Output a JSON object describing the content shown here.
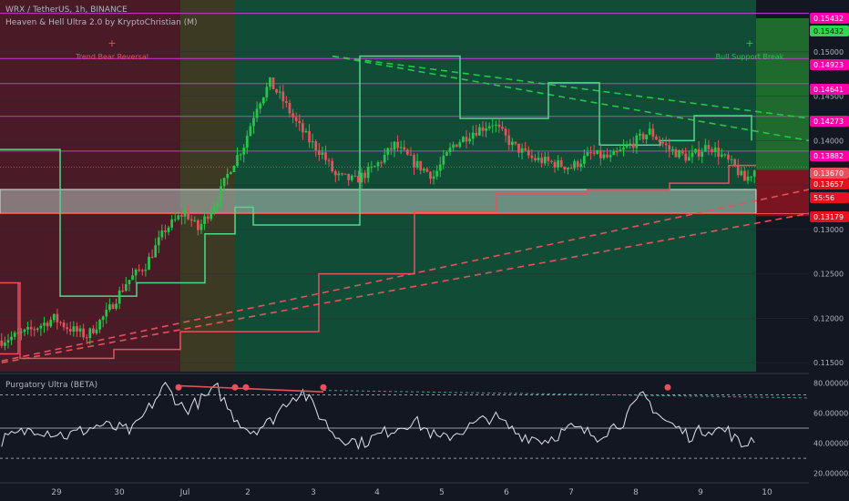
{
  "header": {
    "title": "WRX / TetherUS, 1h, BINANCE",
    "indicator": "Heaven & Hell Ultra 2.0 by KryptoChristian (M)",
    "oscillator": "Purgatory Ultra (BETA)"
  },
  "colors": {
    "background": "#131722",
    "bull": "#26c64b",
    "bear": "#e8505b",
    "magenta": "#c43bd6",
    "pink": "#ff00a8",
    "green_zone": "#114d36",
    "red_zone": "#4a1b27",
    "olive_zone": "#3d3a24",
    "text": "#b2b5be"
  },
  "chart_data": [
    {
      "type": "candlestick",
      "symbol": "WRX / TetherUS",
      "interval": "1h",
      "x_ticks": [
        "29",
        "30",
        "Jul",
        "2",
        "3",
        "4",
        "5",
        "6",
        "7",
        "8",
        "9",
        "10"
      ],
      "ylim": [
        0.114,
        0.155
      ],
      "y_ticks": [
        "0.11500",
        "0.12000",
        "0.12500",
        "0.13000",
        "0.13500",
        "0.14000",
        "0.14500",
        "0.15000"
      ],
      "price_labels": [
        {
          "value": "0.15432",
          "color": "#ff00a8"
        },
        {
          "value": "0.15432",
          "color": "#2fd64f"
        },
        {
          "value": "0.14923",
          "color": "#ff00a8"
        },
        {
          "value": "0.14641",
          "color": "#ff00a8"
        },
        {
          "value": "0.14273",
          "color": "#ff00a8"
        },
        {
          "value": "0.13882",
          "color": "#ff00a8"
        },
        {
          "value": "0.13670",
          "color": "#e8505b"
        },
        {
          "value": "0.13657",
          "color": "#e8101e"
        },
        {
          "value": "55:56",
          "color": "#e8101e"
        },
        {
          "value": "0.13179",
          "color": "#e8101e"
        }
      ],
      "horizontal_levels": [
        0.15432,
        0.14923,
        0.14641,
        0.14273,
        0.13882,
        0.13179
      ],
      "key_path": [
        [
          0,
          0.1175
        ],
        [
          8,
          0.1185
        ],
        [
          16,
          0.12
        ],
        [
          20,
          0.119
        ],
        [
          26,
          0.118
        ],
        [
          32,
          0.1205
        ],
        [
          38,
          0.124
        ],
        [
          44,
          0.126
        ],
        [
          50,
          0.13
        ],
        [
          56,
          0.132
        ],
        [
          60,
          0.13
        ],
        [
          66,
          0.1335
        ],
        [
          70,
          0.137
        ],
        [
          74,
          0.1395
        ],
        [
          78,
          0.144
        ],
        [
          82,
          0.1465
        ],
        [
          86,
          0.1445
        ],
        [
          90,
          0.142
        ],
        [
          94,
          0.14
        ],
        [
          98,
          0.1385
        ],
        [
          102,
          0.136
        ],
        [
          108,
          0.1355
        ],
        [
          114,
          0.137
        ],
        [
          120,
          0.1395
        ],
        [
          126,
          0.1375
        ],
        [
          132,
          0.136
        ],
        [
          138,
          0.1395
        ],
        [
          144,
          0.141
        ],
        [
          150,
          0.142
        ],
        [
          156,
          0.1395
        ],
        [
          162,
          0.138
        ],
        [
          168,
          0.1375
        ],
        [
          174,
          0.137
        ],
        [
          180,
          0.1385
        ],
        [
          186,
          0.138
        ],
        [
          192,
          0.1395
        ],
        [
          198,
          0.141
        ],
        [
          204,
          0.139
        ],
        [
          210,
          0.138
        ],
        [
          216,
          0.1395
        ],
        [
          220,
          0.1383
        ],
        [
          224,
          0.137
        ],
        [
          227,
          0.1355
        ],
        [
          230,
          0.1367
        ]
      ],
      "annotations": [
        {
          "text": "Trend Bear Reversal",
          "x_day": "29",
          "color": "#e8505b"
        },
        {
          "text": "Bull Support Break",
          "x_day": "9",
          "color": "#26c64b"
        }
      ]
    },
    {
      "type": "line",
      "name": "Purgatory Ultra (BETA)",
      "ylim": [
        15,
        85
      ],
      "y_ticks": [
        "80.00000",
        "60.00000",
        "40.00000",
        "20.00000"
      ],
      "levels": [
        72,
        50,
        30
      ],
      "key_path": [
        [
          0,
          42
        ],
        [
          10,
          50
        ],
        [
          20,
          45
        ],
        [
          30,
          52
        ],
        [
          40,
          48
        ],
        [
          50,
          78
        ],
        [
          56,
          62
        ],
        [
          62,
          70
        ],
        [
          66,
          76
        ],
        [
          70,
          60
        ],
        [
          76,
          48
        ],
        [
          82,
          54
        ],
        [
          88,
          70
        ],
        [
          92,
          74
        ],
        [
          96,
          62
        ],
        [
          102,
          45
        ],
        [
          110,
          40
        ],
        [
          118,
          48
        ],
        [
          126,
          55
        ],
        [
          134,
          42
        ],
        [
          142,
          50
        ],
        [
          150,
          58
        ],
        [
          158,
          46
        ],
        [
          166,
          42
        ],
        [
          174,
          50
        ],
        [
          182,
          45
        ],
        [
          190,
          55
        ],
        [
          196,
          72
        ],
        [
          202,
          56
        ],
        [
          210,
          45
        ],
        [
          216,
          50
        ],
        [
          222,
          48
        ],
        [
          226,
          38
        ],
        [
          230,
          44
        ]
      ],
      "divergence_markers": [
        "bearish",
        "bearish",
        "bearish",
        "bearish",
        "bearish"
      ]
    }
  ]
}
